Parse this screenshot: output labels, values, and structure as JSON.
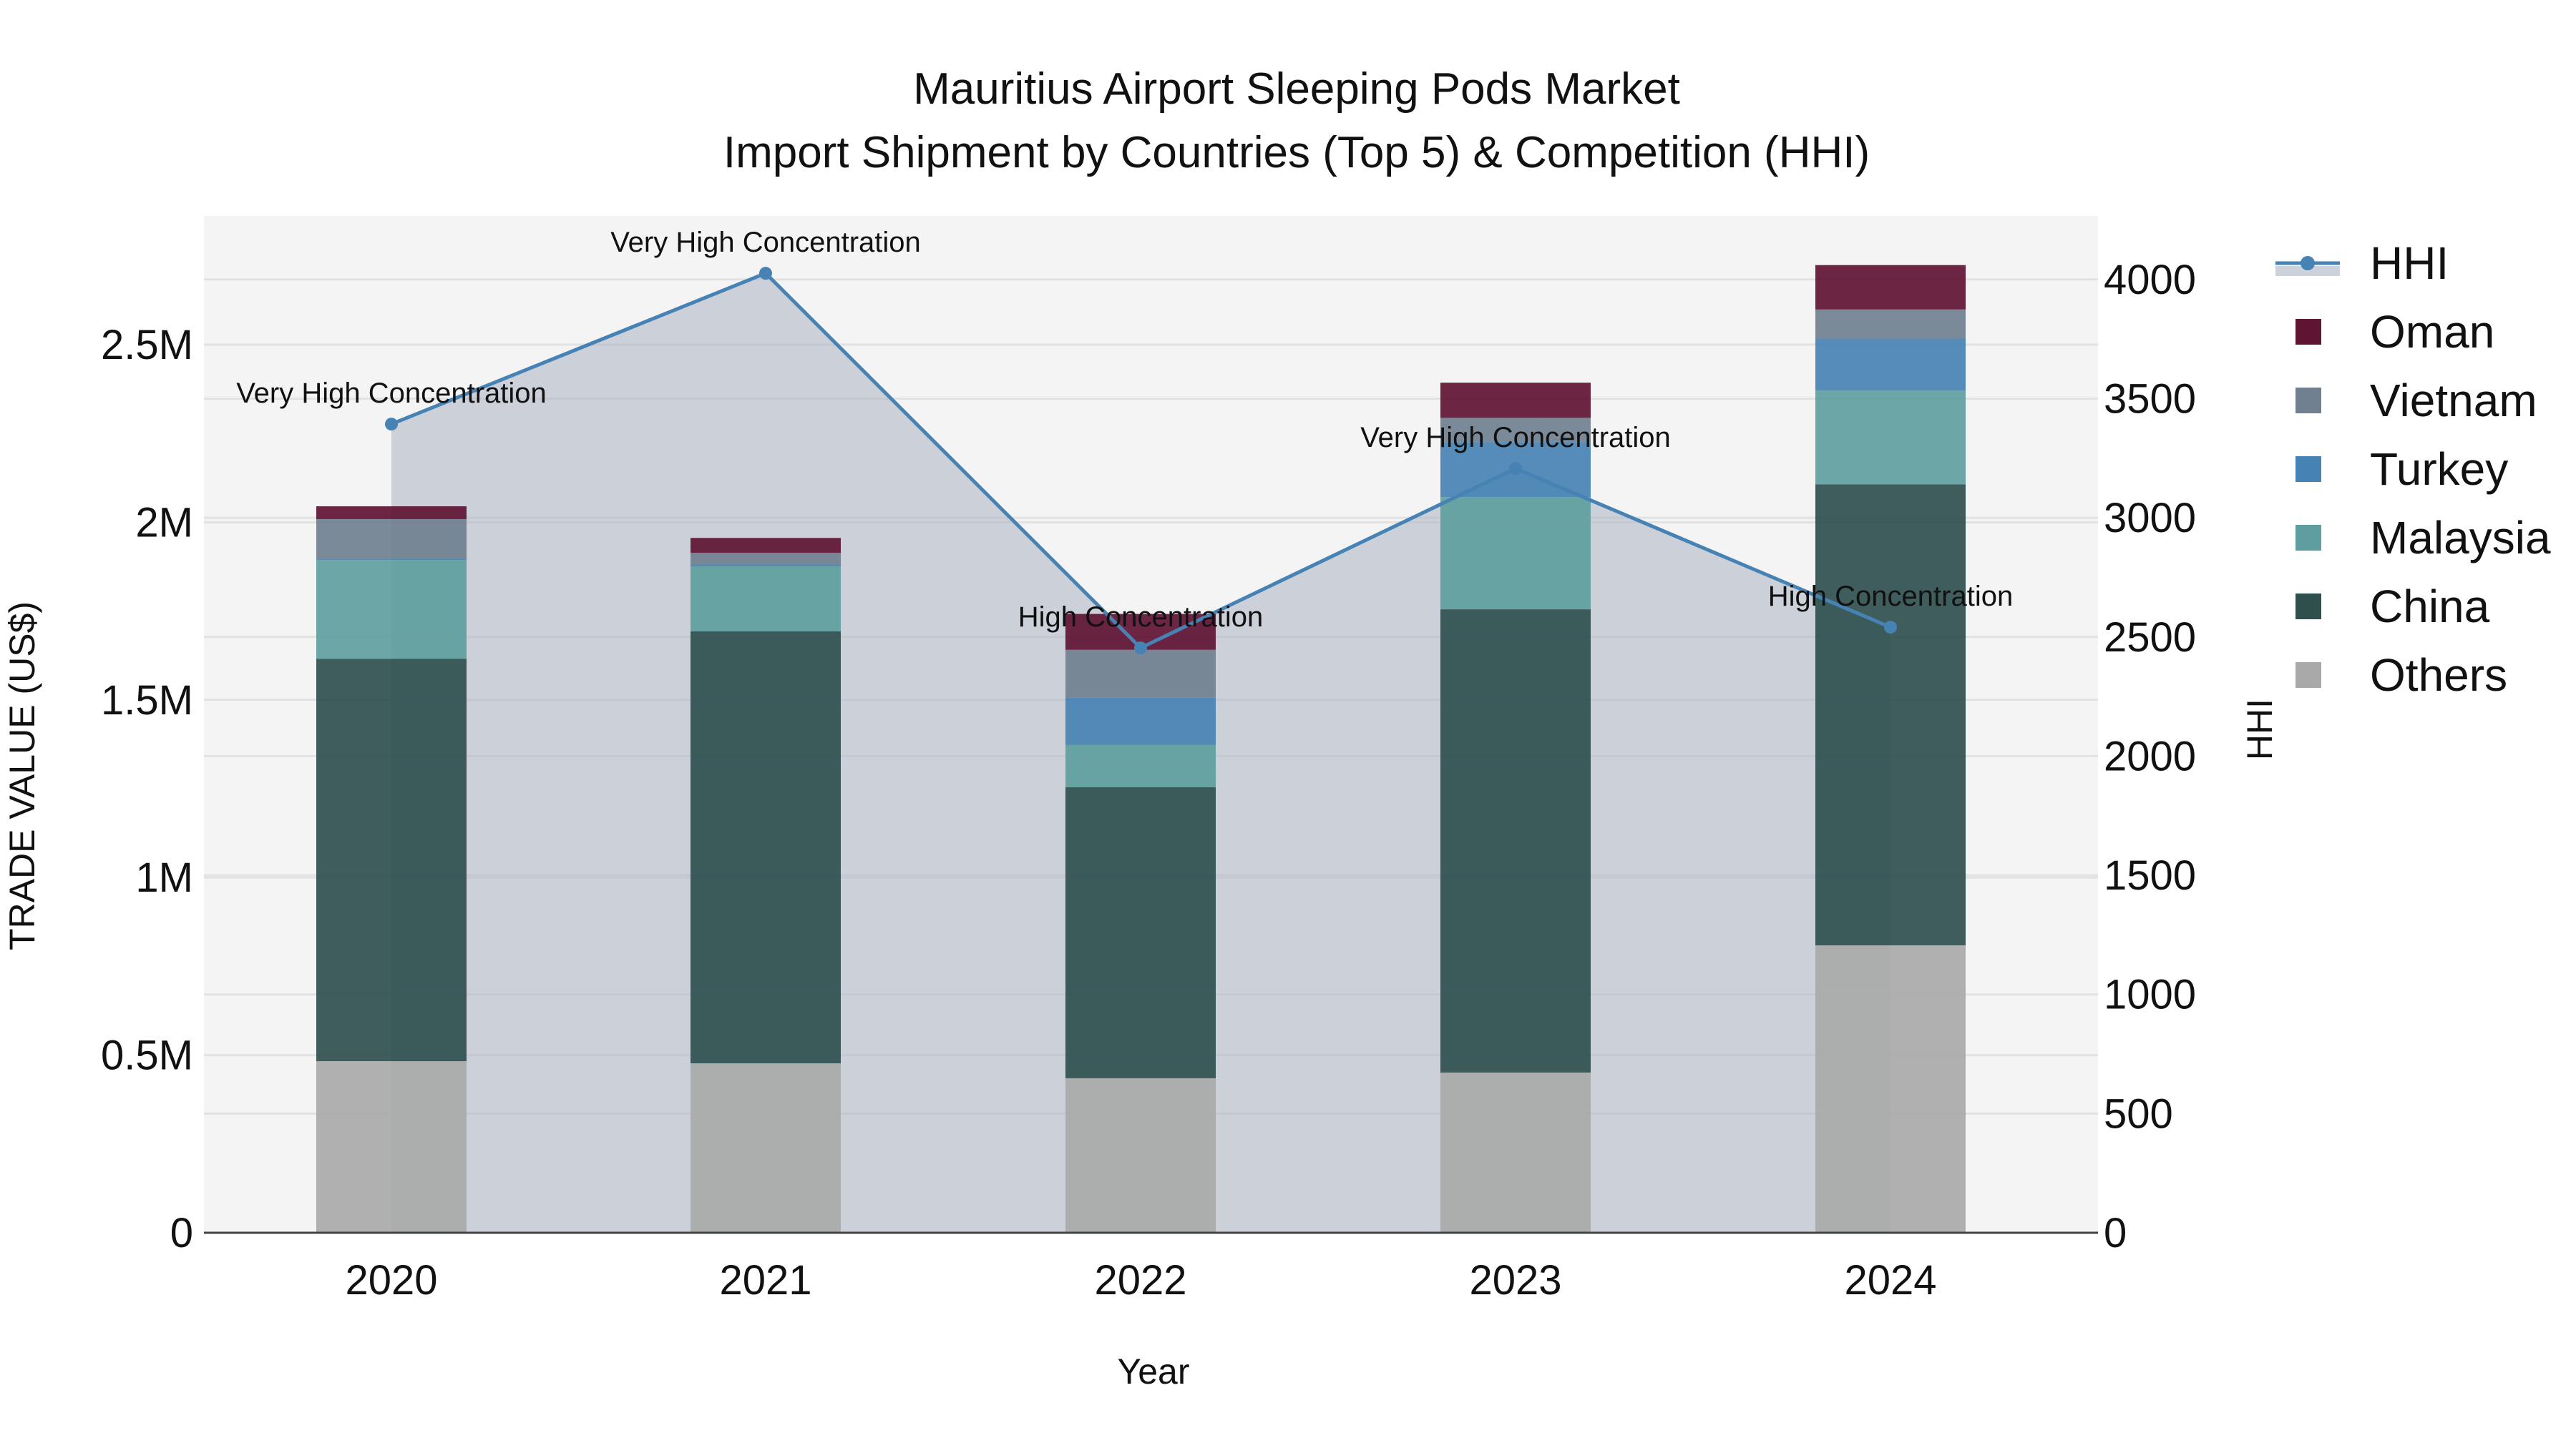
{
  "title": {
    "line1": "Mauritius Airport Sleeping Pods Market",
    "line2": "Import Shipment by Countries (Top 5) & Competition (HHI)"
  },
  "axes": {
    "x_title": "Year",
    "y_left_title": "TRADE VALUE (US$)",
    "y_right_title": "HHI",
    "y_left_ticks": [
      "0",
      "0.5M",
      "1M",
      "1.5M",
      "2M",
      "2.5M"
    ],
    "y_right_ticks": [
      "0",
      "500",
      "1000",
      "1500",
      "2000",
      "2500",
      "3000",
      "3500",
      "4000"
    ]
  },
  "legend": [
    {
      "label": "HHI",
      "type": "line",
      "color": "#4682b4"
    },
    {
      "label": "Oman",
      "type": "bar",
      "color": "#5f1434"
    },
    {
      "label": "Vietnam",
      "type": "bar",
      "color": "#708090"
    },
    {
      "label": "Turkey",
      "type": "bar",
      "color": "#4682b4"
    },
    {
      "label": "Malaysia",
      "type": "bar",
      "color": "#5f9ea0"
    },
    {
      "label": "China",
      "type": "bar",
      "color": "#2f4f4f"
    },
    {
      "label": "Others",
      "type": "bar",
      "color": "#a9a9a9"
    }
  ],
  "annotations": [
    {
      "year": "2020",
      "text": "Very High Concentration"
    },
    {
      "year": "2021",
      "text": "Very High Concentration"
    },
    {
      "year": "2022",
      "text": "High Concentration"
    },
    {
      "year": "2023",
      "text": "Very High Concentration"
    },
    {
      "year": "2024",
      "text": "High Concentration"
    }
  ],
  "chart_data": {
    "type": "bar",
    "stacked": true,
    "title": "Mauritius Airport Sleeping Pods Market — Import Shipment by Countries (Top 5) & Competition (HHI)",
    "xlabel": "Year",
    "ylabel": "TRADE VALUE (US$)",
    "y2label": "HHI",
    "categories": [
      "2020",
      "2021",
      "2022",
      "2023",
      "2024"
    ],
    "ylim": [
      0,
      2.87
    ],
    "y_unit": "M US$",
    "y2lim": [
      0,
      4300
    ],
    "series": [
      {
        "name": "Others",
        "color": "#a9a9a9",
        "values": [
          0.483,
          0.477,
          0.435,
          0.451,
          0.809
        ]
      },
      {
        "name": "China",
        "color": "#2f4f4f",
        "values": [
          1.133,
          1.216,
          0.819,
          1.304,
          1.298
        ]
      },
      {
        "name": "Malaysia",
        "color": "#5f9ea0",
        "values": [
          0.278,
          0.183,
          0.119,
          0.316,
          0.264
        ]
      },
      {
        "name": "Turkey",
        "color": "#4682b4",
        "values": [
          0.004,
          0.004,
          0.133,
          0.155,
          0.147
        ]
      },
      {
        "name": "Vietnam",
        "color": "#708090",
        "values": [
          0.111,
          0.034,
          0.135,
          0.068,
          0.081
        ]
      },
      {
        "name": "Oman",
        "color": "#5f1434",
        "values": [
          0.036,
          0.042,
          0.101,
          0.099,
          0.125
        ]
      }
    ],
    "line_series": {
      "name": "HHI",
      "axis": "right",
      "color": "#4682b4",
      "fill": "tozeroy",
      "values": [
        3393,
        4026,
        2454,
        3207,
        2541
      ],
      "labels": [
        "Very High Concentration",
        "Very High Concentration",
        "High Concentration",
        "Very High Concentration",
        "High Concentration"
      ]
    },
    "grid": true,
    "legend_position": "right"
  }
}
